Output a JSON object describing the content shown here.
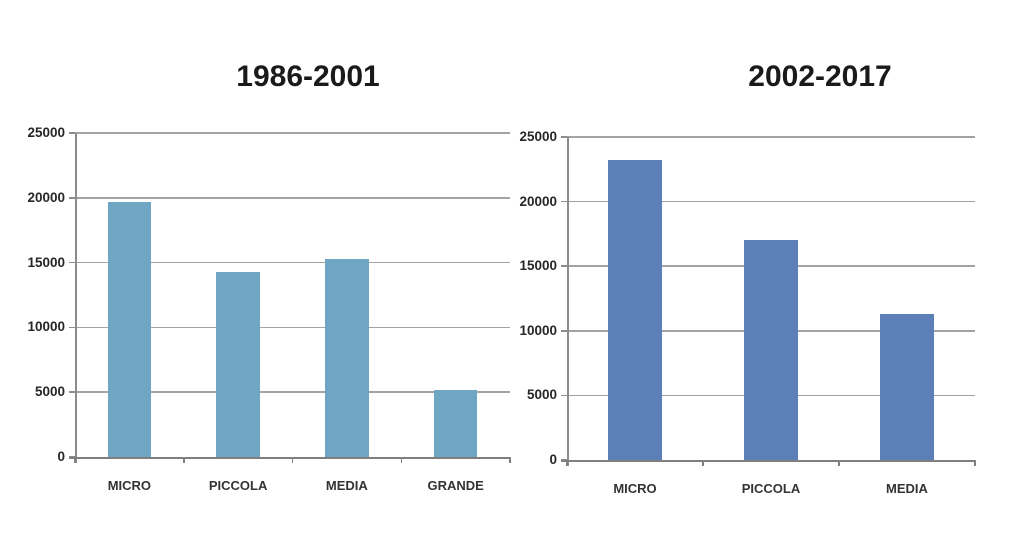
{
  "colors": {
    "grid": "#a3a3a3",
    "axis": "#8c8c8c",
    "x_axis": "#7f7f7f",
    "tick_text": "#262626",
    "category_text": "#333333",
    "title_text": "#1a1a1a",
    "background": "#ffffff",
    "left_bar": "#6FA6C4",
    "right_bar": "#5C7FB8"
  },
  "chart_data": [
    {
      "type": "bar",
      "title": "1986-2001",
      "categories": [
        "MICRO",
        "PICCOLA",
        "MEDIA",
        "GRANDE"
      ],
      "values": [
        19700,
        14300,
        15300,
        5200
      ],
      "y_ticks": [
        0,
        5000,
        10000,
        15000,
        20000,
        25000
      ],
      "ylim": [
        0,
        25000
      ],
      "xlabel": "",
      "ylabel": "",
      "grid": true,
      "legend": "none",
      "bar_color": "#6FA6C4"
    },
    {
      "type": "bar",
      "title": "2002-2017",
      "categories": [
        "MICRO",
        "PICCOLA",
        "MEDIA"
      ],
      "values": [
        23200,
        17000,
        11300
      ],
      "y_ticks": [
        0,
        5000,
        10000,
        15000,
        20000,
        25000
      ],
      "ylim": [
        0,
        25000
      ],
      "xlabel": "",
      "ylabel": "",
      "grid": true,
      "legend": "none",
      "bar_color": "#5C7FB8"
    }
  ]
}
